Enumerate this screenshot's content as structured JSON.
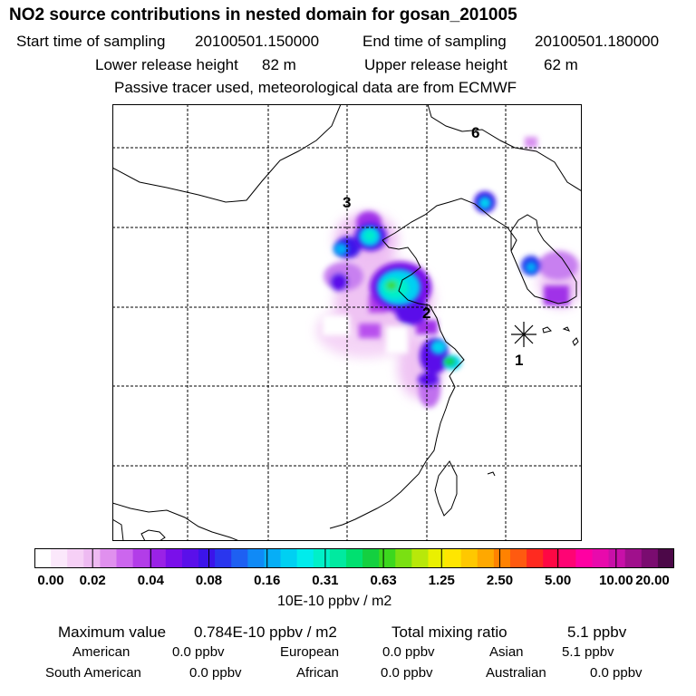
{
  "header": {
    "title": "NO2 source contributions in nested domain for gosan_201005",
    "start_label": "Start time of sampling",
    "start_value": "20100501.150000",
    "end_label": "End time of sampling",
    "end_value": "20100501.180000",
    "lower_label": "Lower release height",
    "lower_value": "82 m",
    "upper_label": "Upper release height",
    "upper_value": "62 m",
    "note": "Passive tracer used, meteorological data are from ECMWF"
  },
  "map": {
    "markers": [
      "6",
      "3",
      "2",
      "1"
    ],
    "receptor": "gosan"
  },
  "colorbar": {
    "ticks": [
      "0.00",
      "0.02",
      "0.04",
      "0.08",
      "0.16",
      "0.31",
      "0.63",
      "1.25",
      "2.50",
      "5.00",
      "10.00",
      "20.00"
    ],
    "unit": "10E-10 ppbv / m2",
    "colors": [
      "#ffffff",
      "#fbe8fb",
      "#f6d0f6",
      "#eebaf2",
      "#e090ee",
      "#cc66ee",
      "#b23de8",
      "#9a22e6",
      "#7a10ea",
      "#5a10ea",
      "#3c14ea",
      "#2a36ee",
      "#1e60f2",
      "#108af6",
      "#06aef6",
      "#00d0f2",
      "#00ecec",
      "#00f0c8",
      "#00eaa0",
      "#00e070",
      "#14d040",
      "#3cd81e",
      "#7ae012",
      "#b8e80a",
      "#eaf000",
      "#ffe600",
      "#ffc800",
      "#ffa800",
      "#ff8200",
      "#ff5a10",
      "#ff2a20",
      "#ff0844",
      "#ff0474",
      "#ff00a2",
      "#e80aac",
      "#c810a8",
      "#a0108c",
      "#7a0c70",
      "#4c0848"
    ]
  },
  "summary": {
    "max_label": "Maximum value",
    "max_value": "0.784E-10 ppbv / m2",
    "total_label": "Total mixing ratio",
    "total_value": "5.1 ppbv"
  },
  "regions": [
    {
      "name": "American",
      "value": "0.0 ppbv"
    },
    {
      "name": "European",
      "value": "0.0 ppbv"
    },
    {
      "name": "Asian",
      "value": "5.1 ppbv"
    },
    {
      "name": "South American",
      "value": "0.0 ppbv"
    },
    {
      "name": "African",
      "value": "0.0 ppbv"
    },
    {
      "name": "Australian",
      "value": "0.0 ppbv"
    }
  ]
}
